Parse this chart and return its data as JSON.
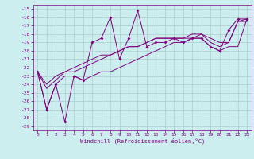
{
  "xlabel": "Windchill (Refroidissement éolien,°C)",
  "x_data": [
    0,
    1,
    2,
    3,
    4,
    5,
    6,
    7,
    8,
    9,
    10,
    11,
    12,
    13,
    14,
    15,
    16,
    17,
    18,
    19,
    20,
    21,
    22,
    23
  ],
  "main_line": [
    -22.5,
    -27.0,
    -24.0,
    -28.5,
    -23.0,
    -23.5,
    -19.0,
    -18.5,
    -16.0,
    -21.0,
    -18.5,
    -15.2,
    -19.5,
    -19.0,
    -19.0,
    -18.5,
    -19.0,
    -18.5,
    -18.5,
    -19.5,
    -20.0,
    -17.5,
    -16.2,
    -16.2
  ],
  "line2": [
    -22.5,
    -27.0,
    -24.0,
    -23.0,
    -23.0,
    -23.5,
    -23.0,
    -22.5,
    -22.5,
    -22.0,
    -21.5,
    -21.0,
    -20.5,
    -20.0,
    -19.5,
    -19.0,
    -19.0,
    -18.5,
    -18.5,
    -19.5,
    -20.0,
    -19.5,
    -19.5,
    -16.2
  ],
  "line3": [
    -22.5,
    -24.5,
    -23.5,
    -22.5,
    -22.5,
    -22.0,
    -21.5,
    -21.0,
    -20.5,
    -20.0,
    -19.5,
    -19.5,
    -19.0,
    -18.5,
    -18.5,
    -18.5,
    -18.5,
    -18.5,
    -18.0,
    -19.0,
    -19.5,
    -19.0,
    -16.5,
    -16.5
  ],
  "line4": [
    -22.5,
    -24.0,
    -23.0,
    -22.5,
    -22.0,
    -21.5,
    -21.0,
    -20.5,
    -20.5,
    -20.0,
    -19.5,
    -19.5,
    -19.0,
    -18.5,
    -18.5,
    -18.5,
    -18.5,
    -18.0,
    -18.0,
    -18.5,
    -19.0,
    -19.0,
    -16.5,
    -16.2
  ],
  "color": "#800080",
  "bg_color": "#cceeee",
  "grid_color": "#aacccc",
  "ylim": [
    -29.5,
    -14.5
  ],
  "xlim": [
    -0.5,
    23.5
  ],
  "yticks": [
    -29,
    -28,
    -27,
    -26,
    -25,
    -24,
    -23,
    -22,
    -21,
    -20,
    -19,
    -18,
    -17,
    -16,
    -15
  ],
  "xticks": [
    0,
    1,
    2,
    3,
    4,
    5,
    6,
    7,
    8,
    9,
    10,
    11,
    12,
    13,
    14,
    15,
    16,
    17,
    18,
    19,
    20,
    21,
    22,
    23
  ]
}
